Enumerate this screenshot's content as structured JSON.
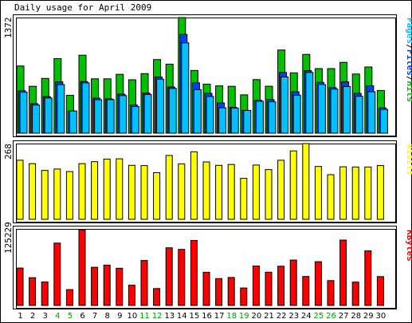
{
  "title": "Daily usage for April 2009",
  "colors": {
    "hits": "#00c000",
    "files": "#0040ff",
    "pages": "#00c0ff",
    "visits": "#ffff00",
    "kbytes": "#ff0000",
    "weekend_day": "#00a000",
    "weekday": "#000000"
  },
  "days": [
    "1",
    "2",
    "3",
    "4",
    "5",
    "6",
    "7",
    "8",
    "9",
    "10",
    "11",
    "12",
    "13",
    "14",
    "15",
    "16",
    "17",
    "18",
    "19",
    "20",
    "21",
    "22",
    "23",
    "24",
    "25",
    "26",
    "27",
    "28",
    "29",
    "30"
  ],
  "weekend_days": [
    "4",
    "5",
    "11",
    "12",
    "18",
    "19",
    "25",
    "26"
  ],
  "chart_data": [
    {
      "type": "bar",
      "title": "Daily usage for April 2009",
      "legend": [
        "Pages",
        "Files",
        "Hits"
      ],
      "ylim": [
        0,
        1372
      ],
      "y_max_label": "1372",
      "categories": [
        "1",
        "2",
        "3",
        "4",
        "5",
        "6",
        "7",
        "8",
        "9",
        "10",
        "11",
        "12",
        "13",
        "14",
        "15",
        "16",
        "17",
        "18",
        "19",
        "20",
        "21",
        "22",
        "23",
        "24",
        "25",
        "26",
        "27",
        "28",
        "29",
        "30"
      ],
      "series": [
        {
          "name": "Hits",
          "values": [
            798,
            556,
            650,
            885,
            449,
            925,
            645,
            645,
            698,
            634,
            707,
            873,
            819,
            1372,
            745,
            582,
            561,
            556,
            455,
            636,
            557,
            987,
            716,
            935,
            766,
            766,
            840,
            702,
            785,
            507
          ]
        },
        {
          "name": "Files",
          "values": [
            503,
            350,
            434,
            608,
            263,
            612,
            415,
            407,
            464,
            334,
            476,
            666,
            549,
            1171,
            598,
            473,
            359,
            307,
            271,
            392,
            398,
            722,
            491,
            742,
            603,
            541,
            608,
            473,
            562,
            300
          ]
        },
        {
          "name": "Pages",
          "values": [
            486,
            334,
            418,
            576,
            263,
            597,
            397,
            398,
            447,
            316,
            460,
            641,
            532,
            1072,
            518,
            436,
            301,
            297,
            270,
            379,
            372,
            667,
            450,
            721,
            578,
            523,
            554,
            438,
            492,
            283
          ]
        }
      ]
    },
    {
      "type": "bar",
      "legend": [
        "Visits"
      ],
      "ylim": [
        0,
        268
      ],
      "y_max_label": "268",
      "categories": [
        "1",
        "2",
        "3",
        "4",
        "5",
        "6",
        "7",
        "8",
        "9",
        "10",
        "11",
        "12",
        "13",
        "14",
        "15",
        "16",
        "17",
        "18",
        "19",
        "20",
        "21",
        "22",
        "23",
        "24",
        "25",
        "26",
        "27",
        "28",
        "29",
        "30"
      ],
      "series": [
        {
          "name": "Visits",
          "values": [
            209,
            197,
            173,
            178,
            169,
            197,
            204,
            213,
            214,
            191,
            190,
            165,
            226,
            196,
            239,
            203,
            191,
            194,
            145,
            192,
            176,
            209,
            242,
            268,
            187,
            158,
            186,
            185,
            185,
            190
          ]
        }
      ]
    },
    {
      "type": "bar",
      "legend": [
        "KBytes"
      ],
      "ylim": [
        0,
        125229
      ],
      "y_max_label": "125229",
      "categories": [
        "1",
        "2",
        "3",
        "4",
        "5",
        "6",
        "7",
        "8",
        "9",
        "10",
        "11",
        "12",
        "13",
        "14",
        "15",
        "16",
        "17",
        "18",
        "19",
        "20",
        "21",
        "22",
        "23",
        "24",
        "25",
        "26",
        "27",
        "28",
        "29",
        "30"
      ],
      "series": [
        {
          "name": "KBytes",
          "values": [
            61760,
            45839,
            38791,
            103034,
            26235,
            125229,
            63184,
            66714,
            61497,
            33522,
            74306,
            27954,
            95281,
            92658,
            107451,
            54876,
            44425,
            46210,
            28835,
            65288,
            54964,
            64799,
            75031,
            47829,
            72369,
            41124,
            108158,
            38565,
            90255,
            47715
          ]
        }
      ]
    }
  ]
}
